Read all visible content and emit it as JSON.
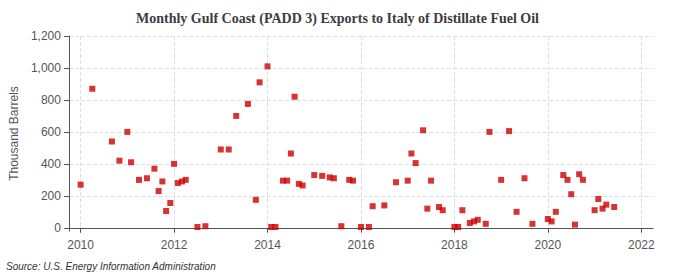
{
  "chart_data": {
    "type": "scatter",
    "title": "Monthly Gulf Coast (PADD 3) Exports to Italy of Distillate Fuel Oil",
    "ylabel": "Thousand Barrels",
    "annotations": [
      "Source: U.S. Energy Information Administration"
    ],
    "color": "#cc0000",
    "marker": "square",
    "grid": true,
    "xlim": [
      2009.75,
      2022.25
    ],
    "ylim": [
      -20,
      1200
    ],
    "xticks": [
      2010,
      2012,
      2014,
      2016,
      2018,
      2020,
      2022
    ],
    "yticks": [
      0,
      200,
      400,
      600,
      800,
      {
        "value": 1000,
        "label": "1,000"
      },
      {
        "value": 1200,
        "label": "1,200"
      }
    ],
    "x": [
      2010.0,
      2010.25,
      2010.67,
      2010.83,
      2011.0,
      2011.08,
      2011.25,
      2011.42,
      2011.58,
      2011.67,
      2011.75,
      2011.83,
      2011.92,
      2012.0,
      2012.08,
      2012.17,
      2012.25,
      2012.5,
      2012.67,
      2013.0,
      2013.17,
      2013.33,
      2013.58,
      2013.75,
      2013.83,
      2014.0,
      2014.08,
      2014.17,
      2014.33,
      2014.42,
      2014.5,
      2014.58,
      2014.67,
      2014.75,
      2015.0,
      2015.17,
      2015.33,
      2015.42,
      2015.58,
      2015.75,
      2015.83,
      2016.0,
      2016.17,
      2016.25,
      2016.5,
      2016.75,
      2017.0,
      2017.08,
      2017.17,
      2017.33,
      2017.42,
      2017.5,
      2017.67,
      2017.75,
      2018.0,
      2018.08,
      2018.17,
      2018.33,
      2018.42,
      2018.5,
      2018.67,
      2018.75,
      2019.0,
      2019.17,
      2019.33,
      2019.5,
      2019.67,
      2020.0,
      2020.08,
      2020.17,
      2020.33,
      2020.42,
      2020.5,
      2020.58,
      2020.67,
      2020.75,
      2021.0,
      2021.08,
      2021.17,
      2021.25,
      2021.42
    ],
    "values": [
      270,
      870,
      540,
      420,
      600,
      410,
      300,
      310,
      370,
      230,
      290,
      105,
      155,
      400,
      280,
      290,
      300,
      5,
      10,
      490,
      490,
      700,
      775,
      175,
      910,
      1010,
      5,
      5,
      295,
      295,
      465,
      820,
      275,
      265,
      330,
      325,
      315,
      310,
      10,
      300,
      295,
      5,
      5,
      135,
      140,
      285,
      295,
      465,
      405,
      610,
      120,
      295,
      130,
      110,
      5,
      5,
      110,
      30,
      40,
      50,
      25,
      600,
      300,
      605,
      100,
      310,
      25,
      55,
      40,
      100,
      330,
      300,
      210,
      20,
      335,
      300,
      110,
      180,
      120,
      145,
      130
    ]
  }
}
